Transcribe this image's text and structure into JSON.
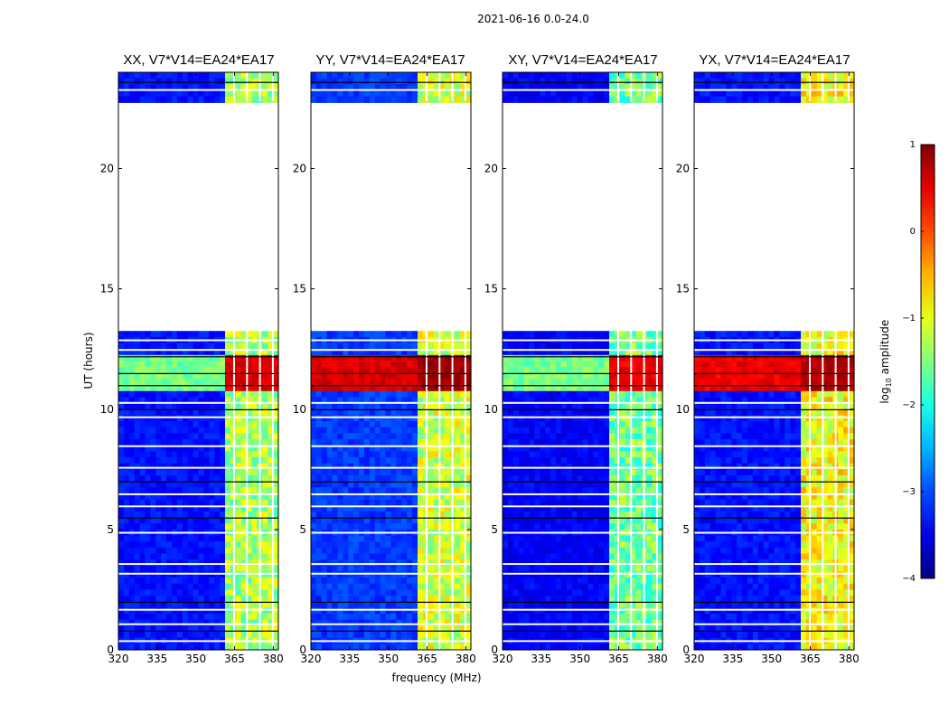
{
  "chart_data": {
    "type": "heatmap",
    "suptitle": "2021-06-16 0.0-24.0",
    "xlabel": "frequency (MHz)",
    "ylabel": "UT (hours)",
    "xlim": [
      320,
      382
    ],
    "ylim": [
      0,
      24
    ],
    "x_ticks": [
      "320",
      "335",
      "350",
      "365",
      "380"
    ],
    "y_ticks": [
      "0",
      "5",
      "10",
      "15",
      "20"
    ],
    "colormap": "jet",
    "colorbar": {
      "label_prefix": "log",
      "label_sub": "10",
      "label_suffix": " amplitude",
      "range": [
        -4,
        1
      ],
      "ticks": [
        "1",
        "0",
        "−1",
        "−2",
        "−3",
        "−4"
      ]
    },
    "data_gap_hours": [
      13.3,
      22.8
    ],
    "band_mhz": [
      361,
      381
    ],
    "panels": [
      {
        "title": "XX, V7*V14=EA24*EA17",
        "background": -3.3,
        "band": -1.3,
        "flare": 0.4
      },
      {
        "title": "YY, V7*V14=EA24*EA17",
        "background": -3.1,
        "band": -1.1,
        "flare": 0.7
      },
      {
        "title": "XY, V7*V14=EA24*EA17",
        "background": -3.4,
        "band": -1.6,
        "flare": 0.3
      },
      {
        "title": "YX, V7*V14=EA24*EA17",
        "background": -3.3,
        "band": -0.9,
        "flare": 0.6
      }
    ]
  }
}
